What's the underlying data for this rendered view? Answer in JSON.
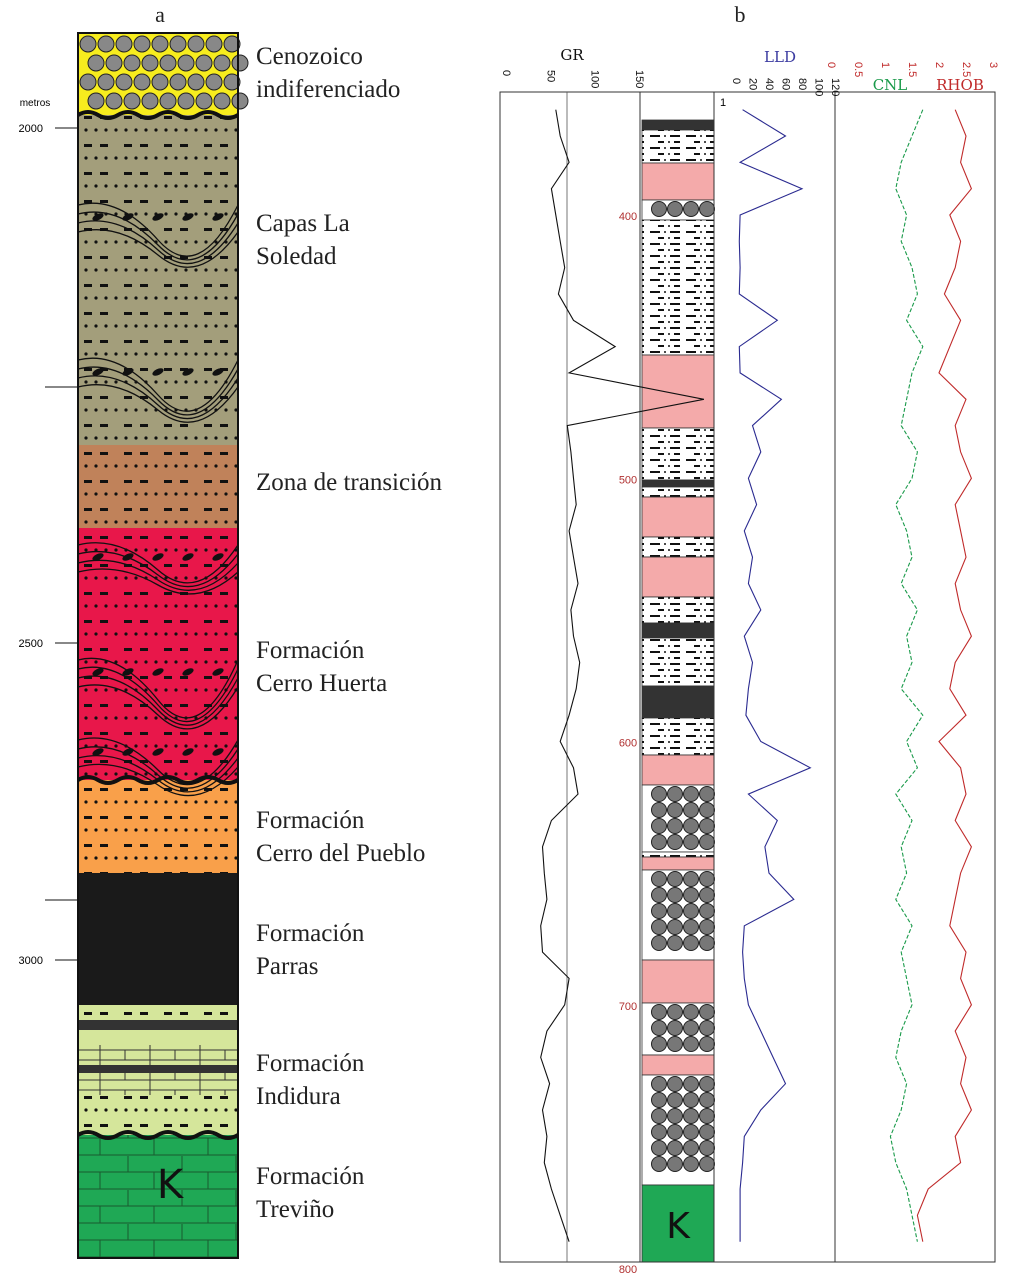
{
  "panel_a": {
    "label": "a",
    "unit": "metros",
    "depth_ticks": [
      2000,
      2500,
      3000
    ],
    "units": [
      {
        "lines": [
          "Cenozoico",
          "indiferenciado"
        ]
      },
      {
        "lines": [
          "Capas La",
          "Soledad"
        ]
      },
      {
        "lines": [
          "Zona de transición"
        ]
      },
      {
        "lines": [
          "Formación",
          "Cerro Huerta"
        ]
      },
      {
        "lines": [
          "Formación",
          "Cerro del Pueblo"
        ]
      },
      {
        "lines": [
          "Formación",
          "Parras"
        ]
      },
      {
        "lines": [
          "Formación",
          "Indidura"
        ]
      },
      {
        "lines": [
          "Formación",
          "Treviño"
        ]
      }
    ],
    "symbol": "K"
  },
  "panel_b": {
    "label": "b",
    "gr": {
      "title": "GR",
      "ticks": [
        0,
        50,
        100,
        150
      ]
    },
    "lld": {
      "title": "LLD",
      "ticks": [
        0,
        20,
        40,
        60,
        80,
        100,
        120
      ],
      "top_label": 1
    },
    "cnl": {
      "title": "CNL"
    },
    "rhob": {
      "title": "RHOB",
      "ticks": [
        0,
        0.5,
        1,
        1.5,
        2,
        2.5,
        3
      ]
    },
    "depth_ticks": [
      400,
      500,
      600,
      700,
      800
    ],
    "symbol": "K",
    "logs": {
      "depths": [
        360,
        370,
        380,
        390,
        400,
        410,
        420,
        430,
        440,
        450,
        460,
        470,
        480,
        490,
        500,
        510,
        520,
        530,
        540,
        550,
        560,
        570,
        580,
        590,
        600,
        610,
        620,
        630,
        640,
        650,
        660,
        670,
        680,
        690,
        700,
        710,
        720,
        730,
        740,
        750,
        760,
        770,
        780,
        790
      ],
      "gr": [
        55,
        60,
        70,
        50,
        55,
        60,
        65,
        58,
        75,
        122,
        70,
        222,
        68,
        72,
        75,
        78,
        70,
        75,
        80,
        72,
        75,
        82,
        78,
        70,
        60,
        75,
        80,
        50,
        40,
        42,
        45,
        38,
        40,
        70,
        65,
        45,
        38,
        48,
        40,
        45,
        42,
        50,
        60,
        70
      ],
      "lld": [
        8,
        60,
        5,
        80,
        5,
        4,
        5,
        4,
        50,
        4,
        5,
        55,
        20,
        30,
        15,
        25,
        10,
        20,
        15,
        30,
        10,
        20,
        15,
        12,
        30,
        90,
        15,
        50,
        35,
        40,
        70,
        10,
        8,
        10,
        15,
        30,
        45,
        60,
        30,
        10,
        8,
        5,
        5,
        5
      ],
      "cnl": [
        1.7,
        1.5,
        1.3,
        1.2,
        1.4,
        1.3,
        1.5,
        1.6,
        1.4,
        1.7,
        1.5,
        1.4,
        1.3,
        1.6,
        1.5,
        1.2,
        1.4,
        1.5,
        1.3,
        1.6,
        1.4,
        1.5,
        1.3,
        1.7,
        1.4,
        1.6,
        1.2,
        1.5,
        1.3,
        1.4,
        1.2,
        1.5,
        1.3,
        1.4,
        1.5,
        1.3,
        1.2,
        1.4,
        1.3,
        1.1,
        1.2,
        1.4,
        1.5,
        1.6
      ],
      "rhob": [
        2.3,
        2.5,
        2.4,
        2.6,
        2.2,
        2.4,
        2.3,
        2.1,
        2.4,
        2.2,
        2.0,
        2.5,
        2.3,
        2.4,
        2.6,
        2.3,
        2.4,
        2.5,
        2.3,
        2.4,
        2.6,
        2.3,
        2.2,
        2.5,
        2.0,
        2.4,
        2.5,
        2.3,
        2.6,
        2.4,
        2.3,
        2.2,
        2.5,
        2.4,
        2.6,
        2.3,
        2.5,
        2.4,
        2.6,
        2.3,
        2.4,
        1.8,
        1.6,
        1.7
      ]
    }
  }
}
